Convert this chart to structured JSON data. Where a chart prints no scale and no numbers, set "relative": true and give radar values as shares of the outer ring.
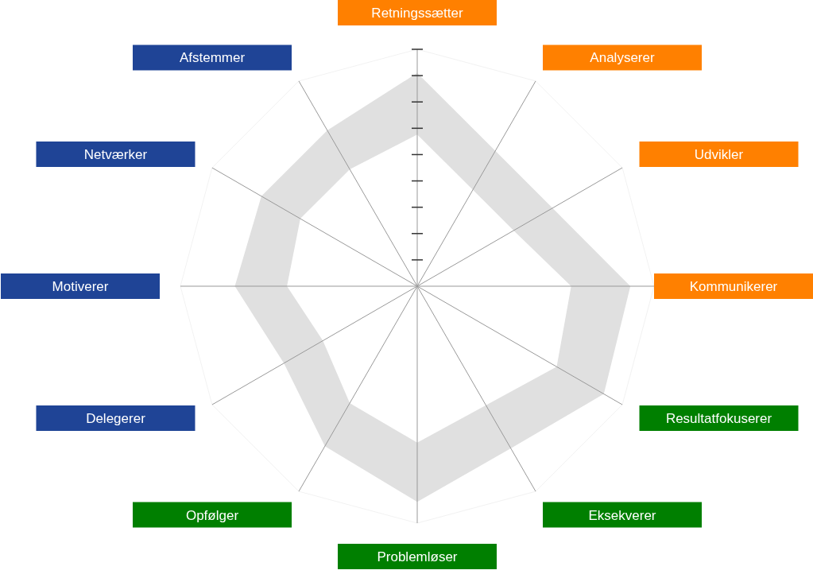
{
  "chart_data": {
    "type": "radar",
    "relative": true,
    "categories": [
      "Retningssætter",
      "Analyserer",
      "Udvikler",
      "Kommunikerer",
      "Resultatfokuserer",
      "Eksekverer",
      "Problemløser",
      "Opfølger",
      "Delegerer",
      "Motiverer",
      "Netværker",
      "Afstemmer"
    ],
    "colors": [
      "#ff8000",
      "#ff8000",
      "#ff8000",
      "#ff8000",
      "#007f00",
      "#007f00",
      "#007f00",
      "#007f00",
      "#1f4496",
      "#1f4496",
      "#1f4496",
      "#1f4496"
    ],
    "series": [
      {
        "color": "#e0e0e0",
        "values": [
          0.9,
          0.66,
          0.66,
          0.9,
          0.91,
          0.79,
          0.91,
          0.78,
          0.65,
          0.77,
          0.76,
          0.76
        ]
      },
      {
        "color": "#ffffff",
        "values": [
          0.64,
          0.47,
          0.47,
          0.65,
          0.68,
          0.58,
          0.66,
          0.57,
          0.46,
          0.55,
          0.57,
          0.57
        ]
      }
    ]
  }
}
